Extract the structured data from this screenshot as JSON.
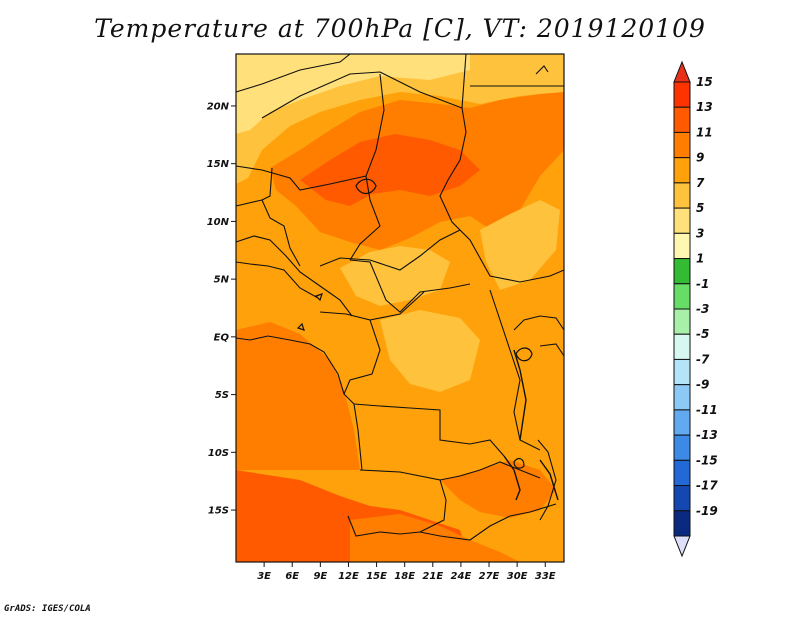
{
  "title": "Temperature at 700hPa [C], VT: 2019120109",
  "credit": "GrADS: IGES/COLA",
  "map": {
    "lat_ticks": [
      "20N",
      "15N",
      "10N",
      "5N",
      "EQ",
      "5S",
      "10S",
      "15S"
    ],
    "lon_ticks": [
      "3E",
      "6E",
      "9E",
      "12E",
      "15E",
      "18E",
      "21E",
      "24E",
      "27E",
      "30E",
      "33E"
    ],
    "lat_range": [
      -19.5,
      24.5
    ],
    "lon_range": [
      0,
      35
    ]
  },
  "colorbar": {
    "levels": [
      {
        "label": "15",
        "color": "#ff3300"
      },
      {
        "label": "13",
        "color": "#ff5a00"
      },
      {
        "label": "11",
        "color": "#ff7e00"
      },
      {
        "label": "9",
        "color": "#ffa10a"
      },
      {
        "label": "7",
        "color": "#ffc23c"
      },
      {
        "label": "5",
        "color": "#ffe07a"
      },
      {
        "label": "3",
        "color": "#fff6b0"
      },
      {
        "label": "1",
        "color": "#33bb33"
      },
      {
        "label": "-1",
        "color": "#66dd66"
      },
      {
        "label": "-3",
        "color": "#a8f0a8"
      },
      {
        "label": "-5",
        "color": "#d6f8f0"
      },
      {
        "label": "-7",
        "color": "#b4e4f8"
      },
      {
        "label": "-9",
        "color": "#8ccaf5"
      },
      {
        "label": "-11",
        "color": "#62aaf0"
      },
      {
        "label": "-13",
        "color": "#3c8ae6"
      },
      {
        "label": "-15",
        "color": "#2268d6"
      },
      {
        "label": "-17",
        "color": "#1448b0"
      },
      {
        "label": "-19",
        "color": "#0a2a80"
      }
    ],
    "top_color": "#e8301a",
    "bottom_color": "#dde0f8",
    "band_colors": [
      "#ff3300",
      "#ff5a00",
      "#ff7e00",
      "#ffa10a",
      "#ffc23c",
      "#ffe07a",
      "#fff6b0",
      "#33bb33",
      "#66dd66",
      "#a8f0a8",
      "#d6f8f0",
      "#b4e4f8",
      "#8ccaf5",
      "#62aaf0",
      "#3c8ae6",
      "#2268d6",
      "#1448b0",
      "#0a2a80"
    ]
  },
  "map_colors": {
    "c13": "#ff5a00",
    "c11": "#ff7e00",
    "c9": "#ffa10a",
    "c7": "#ffc23c",
    "c5": "#ffe07a"
  }
}
